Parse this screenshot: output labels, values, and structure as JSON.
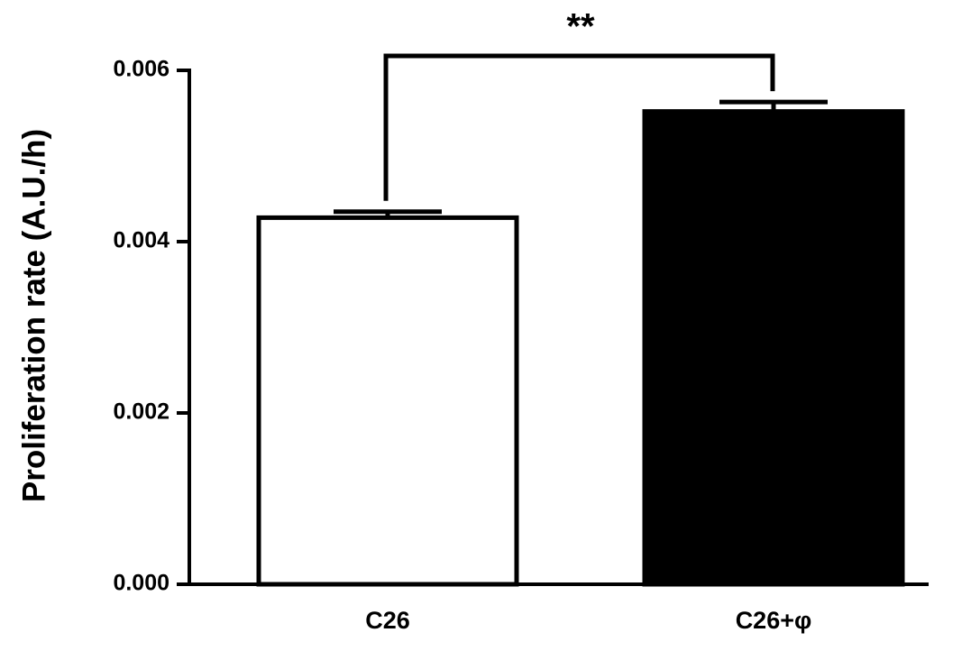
{
  "chart_data": {
    "type": "bar",
    "ylabel": "Proliferation rate (A.U./h)",
    "categories": [
      "C26",
      "C26+φ"
    ],
    "values": [
      0.00428,
      0.00552
    ],
    "errors": [
      7e-05,
      0.00011
    ],
    "colors": [
      "#ffffff",
      "#000000"
    ],
    "ylim": [
      0,
      0.006
    ],
    "yticks": [
      {
        "value": 0,
        "label": "0.000"
      },
      {
        "value": 0.002,
        "label": "0.002"
      },
      {
        "value": 0.004,
        "label": "0.004"
      },
      {
        "value": 0.006,
        "label": "0.006"
      }
    ],
    "significance": "**"
  }
}
